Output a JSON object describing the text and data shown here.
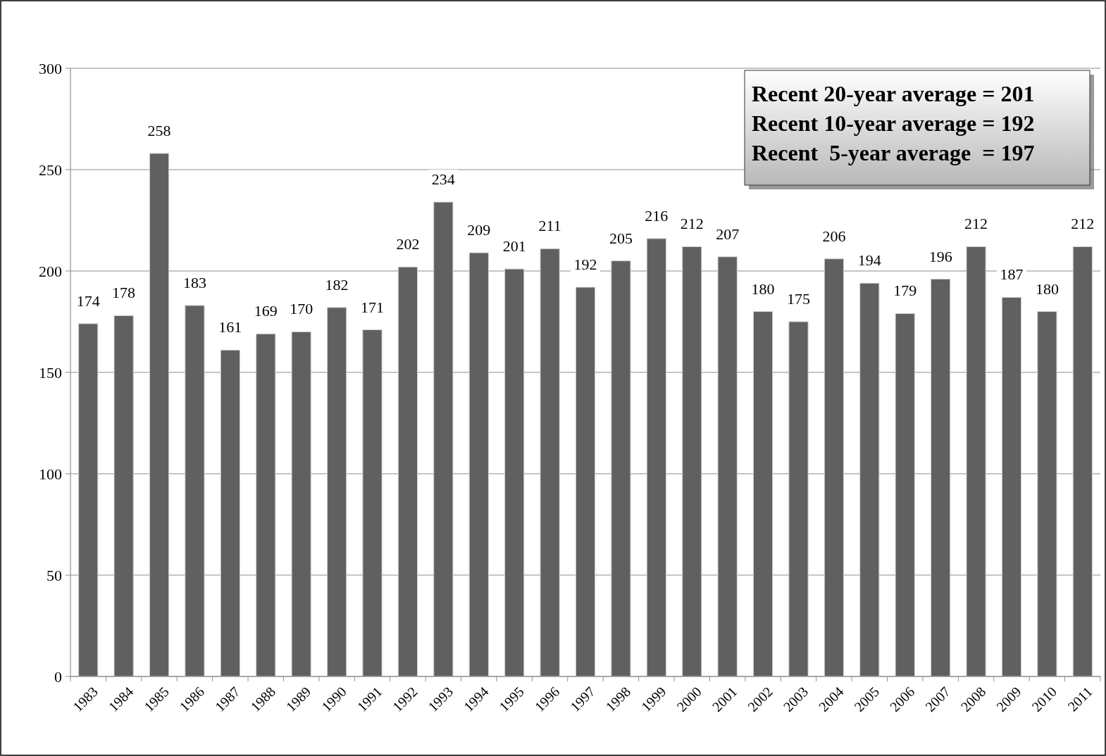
{
  "chart_data": {
    "type": "bar",
    "categories": [
      "1983",
      "1984",
      "1985",
      "1986",
      "1987",
      "1988",
      "1989",
      "1990",
      "1991",
      "1992",
      "1993",
      "1994",
      "1995",
      "1996",
      "1997",
      "1998",
      "1999",
      "2000",
      "2001",
      "2002",
      "2003",
      "2004",
      "2005",
      "2006",
      "2007",
      "2008",
      "2009",
      "2010",
      "2011"
    ],
    "values": [
      174,
      178,
      258,
      183,
      161,
      169,
      170,
      182,
      171,
      202,
      234,
      209,
      201,
      211,
      192,
      205,
      216,
      212,
      207,
      180,
      175,
      206,
      194,
      179,
      196,
      212,
      187,
      180,
      212
    ],
    "color": "#606060",
    "ylim": [
      0,
      300
    ],
    "yticks": [
      0,
      50,
      100,
      150,
      200,
      250,
      300
    ],
    "grid": "y",
    "data_labels": true,
    "annotations": [
      "Recent 20-year average = 201",
      "Recent 10-year average = 192",
      "Recent  5-year average  = 197"
    ]
  }
}
